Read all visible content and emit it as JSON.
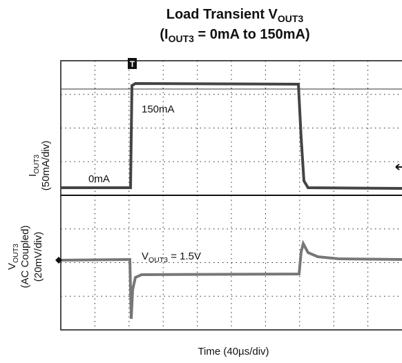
{
  "chart_data": {
    "type": "oscilloscope",
    "title": {
      "line1": {
        "text": "Load Transient V",
        "sub": "OUT3"
      },
      "line2": {
        "open": "(I",
        "sub": "OUT3",
        "rest": " = 0mA to 150mA)"
      }
    },
    "annotations": {
      "high": "150mA",
      "low": "0mA",
      "vout": {
        "main": "V",
        "sub": "OUT3",
        "rest": " = 1.5V"
      }
    },
    "channel1": {
      "main": "I",
      "sub": "OUT3",
      "scale": "(50mA/div)"
    },
    "channel2": {
      "main": "V",
      "sub": "OUT3",
      "coupling": "(AC Coupled)",
      "scale": "(20mV/div)"
    },
    "x_label": "Time (40µs/div)",
    "trigger_marker": "T"
  }
}
